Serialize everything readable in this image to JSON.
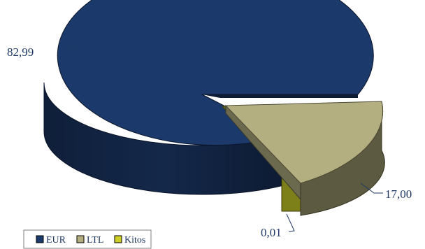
{
  "chart_data": {
    "type": "pie",
    "title": "",
    "categories": [
      "EUR",
      "LTL",
      "Kitos"
    ],
    "values": [
      82.99,
      17.0,
      0.01
    ],
    "data_labels": [
      "82,99",
      "17,00",
      "0,01"
    ],
    "three_d": true,
    "exploded": [
      "LTL",
      "Kitos"
    ],
    "legend_position": "bottom-left",
    "legend": [
      "EUR",
      "LTL",
      "Kitos"
    ],
    "colors": {
      "EUR": "#1b3a6b",
      "LTL": "#b3af80",
      "Kitos": "#cfcf2a"
    }
  }
}
